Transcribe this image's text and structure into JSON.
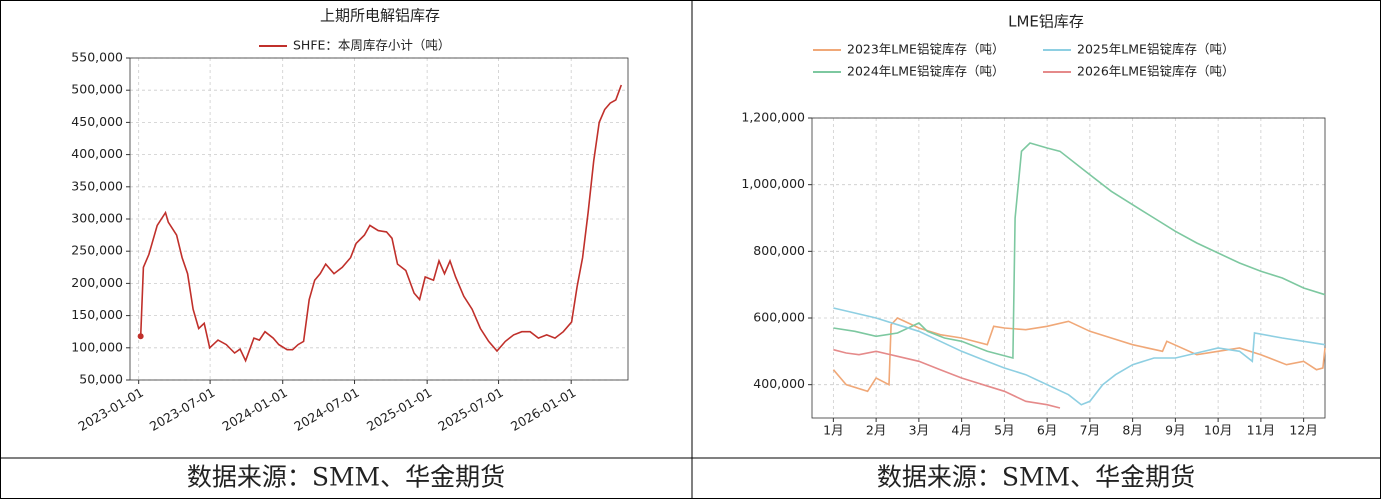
{
  "chart_data": [
    {
      "type": "line",
      "title": "上期所电解铝库存",
      "date_axis": true,
      "x": [
        "2023-01-06",
        "2023-01-13",
        "2023-01-27",
        "2023-02-17",
        "2023-03-10",
        "2023-03-17",
        "2023-04-07",
        "2023-04-21",
        "2023-05-05",
        "2023-05-19",
        "2023-06-02",
        "2023-06-16",
        "2023-06-30",
        "2023-07-21",
        "2023-08-11",
        "2023-09-01",
        "2023-09-15",
        "2023-09-29",
        "2023-10-20",
        "2023-11-03",
        "2023-11-17",
        "2023-12-08",
        "2023-12-22",
        "2024-01-12",
        "2024-01-26",
        "2024-02-09",
        "2024-02-23",
        "2024-03-08",
        "2024-03-22",
        "2024-04-05",
        "2024-04-19",
        "2024-05-10",
        "2024-05-31",
        "2024-06-21",
        "2024-07-05",
        "2024-07-26",
        "2024-08-09",
        "2024-08-30",
        "2024-09-20",
        "2024-10-04",
        "2024-10-18",
        "2024-11-08",
        "2024-11-29",
        "2024-12-13",
        "2024-12-27",
        "2025-01-17",
        "2025-01-31",
        "2025-02-14",
        "2025-02-28",
        "2025-03-14",
        "2025-04-04",
        "2025-04-25",
        "2025-05-16",
        "2025-06-06",
        "2025-06-27",
        "2025-07-18",
        "2025-08-08",
        "2025-08-29",
        "2025-09-19",
        "2025-10-10",
        "2025-10-31",
        "2025-11-21",
        "2025-12-12",
        "2026-01-02",
        "2026-01-16",
        "2026-01-30",
        "2026-02-13",
        "2026-02-27",
        "2026-03-13",
        "2026-03-27",
        "2026-04-10",
        "2026-04-24",
        "2026-05-08"
      ],
      "series": [
        {
          "name": "SHFE：本周库存小计（吨）",
          "color": "#c0302b",
          "values": [
            118000,
            225000,
            245000,
            290000,
            310000,
            295000,
            275000,
            240000,
            215000,
            160000,
            130000,
            138000,
            100000,
            112000,
            105000,
            92000,
            98000,
            80000,
            115000,
            112000,
            125000,
            115000,
            105000,
            97000,
            97000,
            105000,
            110000,
            175000,
            205000,
            215000,
            230000,
            215000,
            225000,
            240000,
            262000,
            275000,
            290000,
            282000,
            280000,
            270000,
            230000,
            220000,
            185000,
            175000,
            210000,
            205000,
            235000,
            215000,
            235000,
            210000,
            180000,
            160000,
            130000,
            110000,
            95000,
            110000,
            120000,
            125000,
            125000,
            115000,
            120000,
            115000,
            125000,
            140000,
            195000,
            240000,
            310000,
            390000,
            450000,
            470000,
            480000,
            485000,
            508000
          ]
        }
      ],
      "xlim": [
        "2022-12-10",
        "2026-05-25"
      ],
      "xticks": [
        "2023-01-01",
        "2023-07-01",
        "2024-01-01",
        "2024-07-01",
        "2025-01-01",
        "2025-07-01",
        "2026-01-01"
      ],
      "ylim": [
        50000,
        550000
      ],
      "yticks": [
        {
          "value": 50000,
          "label": "50,000"
        },
        {
          "value": 100000,
          "label": "100,000"
        },
        {
          "value": 150000,
          "label": "150,000"
        },
        {
          "value": 200000,
          "label": "200,000"
        },
        {
          "value": 250000,
          "label": "250,000"
        },
        {
          "value": 300000,
          "label": "300,000"
        },
        {
          "value": 350000,
          "label": "350,000"
        },
        {
          "value": 400000,
          "label": "400,000"
        },
        {
          "value": 450000,
          "label": "450,000"
        },
        {
          "value": 500000,
          "label": "500,000"
        },
        {
          "value": 550000,
          "label": "550,000"
        }
      ],
      "grid": true,
      "legend": "top"
    },
    {
      "type": "line",
      "title": "LME铝库存",
      "series": [
        {
          "name": "2023年LME铝锭库存（吨）",
          "color": "#f0a878",
          "x": [
            1,
            1.3,
            1.8,
            2,
            2.3,
            2.35,
            2.5,
            3,
            3.5,
            4,
            4.6,
            4.75,
            5,
            5.5,
            6,
            6.5,
            7,
            7.5,
            8,
            8.7,
            8.8,
            9.5,
            10,
            10.5,
            11,
            11.6,
            12,
            12.3,
            12.45,
            12.5
          ],
          "values": [
            445000,
            400000,
            380000,
            420000,
            400000,
            580000,
            600000,
            570000,
            550000,
            540000,
            520000,
            575000,
            570000,
            565000,
            575000,
            590000,
            560000,
            540000,
            520000,
            500000,
            530000,
            490000,
            500000,
            510000,
            490000,
            460000,
            470000,
            445000,
            450000,
            510000
          ]
        },
        {
          "name": "2024年LME铝锭库存（吨）",
          "color": "#7dc8a0",
          "x": [
            1,
            1.5,
            2,
            2.5,
            3,
            3.2,
            3.6,
            4,
            4.6,
            5.2,
            5.25,
            5.4,
            5.6,
            6,
            6.3,
            7,
            7.5,
            8,
            8.5,
            9,
            9.5,
            10,
            10.5,
            11,
            11.5,
            12,
            12.5
          ],
          "values": [
            570000,
            560000,
            545000,
            555000,
            585000,
            560000,
            540000,
            530000,
            500000,
            480000,
            900000,
            1100000,
            1125000,
            1110000,
            1100000,
            1030000,
            980000,
            940000,
            900000,
            860000,
            825000,
            795000,
            765000,
            740000,
            720000,
            690000,
            670000
          ]
        },
        {
          "name": "2025年LME铝锭库存（吨）",
          "color": "#8ecfe2",
          "x": [
            1,
            1.5,
            2,
            2.5,
            3,
            3.5,
            4,
            4.5,
            5,
            5.5,
            6,
            6.5,
            6.8,
            7,
            7.3,
            7.6,
            8,
            8.5,
            9,
            9.5,
            10,
            10.5,
            10.8,
            10.85,
            11.5,
            12,
            12.5
          ],
          "values": [
            630000,
            615000,
            600000,
            580000,
            560000,
            530000,
            500000,
            475000,
            450000,
            430000,
            400000,
            370000,
            340000,
            350000,
            400000,
            430000,
            460000,
            480000,
            480000,
            495000,
            510000,
            500000,
            470000,
            555000,
            540000,
            530000,
            520000
          ]
        },
        {
          "name": "2026年LME铝锭库存（吨）",
          "color": "#e58a8a",
          "x": [
            1,
            1.3,
            1.6,
            2,
            2.5,
            3,
            3.5,
            4,
            4.5,
            5,
            5.5,
            6,
            6.3
          ],
          "values": [
            505000,
            495000,
            490000,
            500000,
            485000,
            470000,
            445000,
            420000,
            400000,
            380000,
            350000,
            340000,
            330000
          ]
        }
      ],
      "xlim": [
        0.5,
        12.5
      ],
      "xticks": [
        {
          "value": 1,
          "label": "1月"
        },
        {
          "value": 2,
          "label": "2月"
        },
        {
          "value": 3,
          "label": "3月"
        },
        {
          "value": 4,
          "label": "4月"
        },
        {
          "value": 5,
          "label": "5月"
        },
        {
          "value": 6,
          "label": "6月"
        },
        {
          "value": 7,
          "label": "7月"
        },
        {
          "value": 8,
          "label": "8月"
        },
        {
          "value": 9,
          "label": "9月"
        },
        {
          "value": 10,
          "label": "10月"
        },
        {
          "value": 11,
          "label": "11月"
        },
        {
          "value": 12,
          "label": "12月"
        }
      ],
      "ylim": [
        300000,
        1200000
      ],
      "yticks": [
        {
          "value": 400000,
          "label": "400,000"
        },
        {
          "value": 600000,
          "label": "600,000"
        },
        {
          "value": 800000,
          "label": "800,000"
        },
        {
          "value": 1000000,
          "label": "1,000,000"
        },
        {
          "value": 1200000,
          "label": "1,200,000"
        }
      ],
      "grid": true,
      "legend": "top"
    }
  ],
  "sources": [
    "数据来源：SMM、华金期货",
    "数据来源：SMM、华金期货"
  ]
}
